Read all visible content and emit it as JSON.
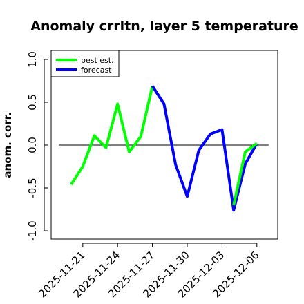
{
  "chart_data": {
    "type": "line",
    "title": "Anomaly crrltn, layer 5 temperature",
    "xlabel": "",
    "ylabel": "anom. corr.",
    "x": [
      "2025-11-20",
      "2025-11-21",
      "2025-11-22",
      "2025-11-23",
      "2025-11-24",
      "2025-11-25",
      "2025-11-26",
      "2025-11-27",
      "2025-11-28",
      "2025-11-29",
      "2025-11-30",
      "2025-12-01",
      "2025-12-02",
      "2025-12-03",
      "2025-12-04",
      "2025-12-05",
      "2025-12-06"
    ],
    "x_ticks": [
      {
        "label": "2025-11-21",
        "color": "#000000"
      },
      {
        "label": "2025-11-24",
        "color": "#000000"
      },
      {
        "label": "2025-11-27",
        "color": "#228b22"
      },
      {
        "label": "2025-11-30",
        "color": "#000000"
      },
      {
        "label": "2025-12-03",
        "color": "#000000"
      },
      {
        "label": "2025-12-06",
        "color": "#000000"
      }
    ],
    "y_ticks": [
      "-1.0",
      "-0.5",
      "0.0",
      "0.5",
      "1.0"
    ],
    "ylim": [
      -1.05,
      1.08
    ],
    "reference_line_y": 0,
    "legend_position": "top-left",
    "series": [
      {
        "name": "best est.",
        "color": "#00ff00",
        "values": [
          -0.46,
          -0.25,
          0.11,
          -0.03,
          0.48,
          -0.08,
          0.1,
          0.69,
          null,
          null,
          null,
          null,
          null,
          null,
          null,
          null,
          null
        ]
      },
      {
        "name": "forecast",
        "color": "#0000ff",
        "values": [
          null,
          null,
          null,
          null,
          null,
          null,
          null,
          0.69,
          0.48,
          -0.23,
          -0.6,
          -0.06,
          0.13,
          0.18,
          -0.76,
          -0.22,
          0.02
        ]
      },
      {
        "name": "",
        "color": "#00ff00",
        "values": [
          null,
          null,
          null,
          null,
          null,
          null,
          null,
          null,
          null,
          null,
          null,
          -0.09,
          null,
          null,
          -0.7,
          -0.08,
          0.02
        ]
      }
    ]
  }
}
